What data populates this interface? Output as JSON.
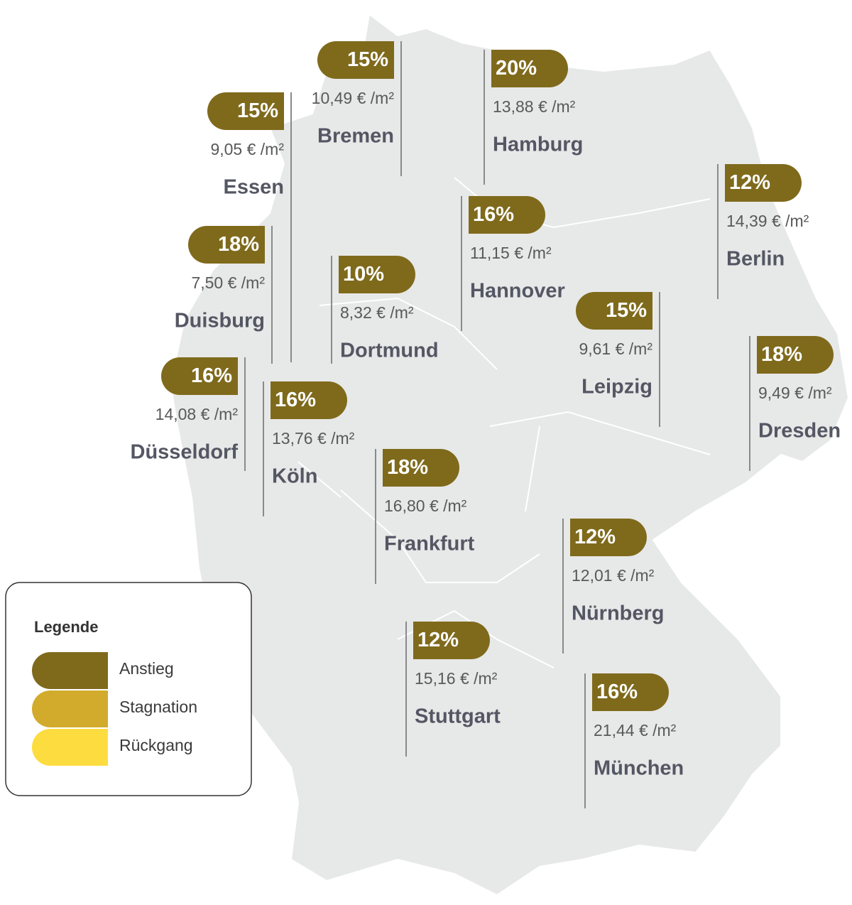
{
  "map": {
    "badge_color": "#7f6a1c",
    "cities": [
      {
        "name": "Bremen",
        "change": "15%",
        "price": "10,49 € /m²"
      },
      {
        "name": "Hamburg",
        "change": "20%",
        "price": "13,88 € /m²"
      },
      {
        "name": "Essen",
        "change": "15%",
        "price": "9,05 € /m²"
      },
      {
        "name": "Duisburg",
        "change": "18%",
        "price": "7,50 € /m²"
      },
      {
        "name": "Dortmund",
        "change": "10%",
        "price": "8,32 € /m²"
      },
      {
        "name": "Düsseldorf",
        "change": "16%",
        "price": "14,08 € /m²"
      },
      {
        "name": "Köln",
        "change": "16%",
        "price": "13,76 € /m²"
      },
      {
        "name": "Hannover",
        "change": "16%",
        "price": "11,15 € /m²"
      },
      {
        "name": "Berlin",
        "change": "12%",
        "price": "14,39 € /m²"
      },
      {
        "name": "Leipzig",
        "change": "15%",
        "price": "9,61 € /m²"
      },
      {
        "name": "Dresden",
        "change": "18%",
        "price": "9,49 € /m²"
      },
      {
        "name": "Frankfurt",
        "change": "18%",
        "price": "16,80 € /m²"
      },
      {
        "name": "Nürnberg",
        "change": "12%",
        "price": "12,01 € /m²"
      },
      {
        "name": "Stuttgart",
        "change": "12%",
        "price": "15,16 € /m²"
      },
      {
        "name": "München",
        "change": "16%",
        "price": "21,44 € /m²"
      }
    ],
    "legend": {
      "title": "Legende",
      "items": [
        {
          "name": "Anstieg",
          "color": "#7f6a1c"
        },
        {
          "name": "Stagnation",
          "color": "#d2ab2c"
        },
        {
          "name": "Rückgang",
          "color": "#fddc40"
        }
      ]
    }
  }
}
